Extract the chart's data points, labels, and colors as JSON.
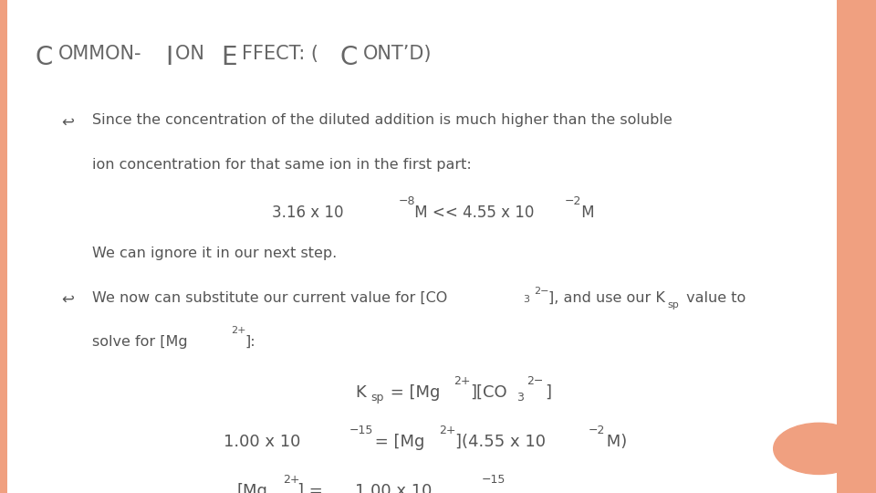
{
  "background_color": "#FFFFFF",
  "border_color": "#F0A080",
  "text_color": "#555555",
  "title_color": "#666666",
  "orange_circle_color": "#F0A080",
  "figsize": [
    9.6,
    5.4
  ],
  "dpi": 100,
  "title_segments": [
    [
      "C",
      20
    ],
    [
      "OMMON-",
      15
    ],
    [
      "I",
      20
    ],
    [
      "ON ",
      15
    ],
    [
      "E",
      20
    ],
    [
      "FFECT: (",
      15
    ],
    [
      "C",
      20
    ],
    [
      "ONT’D)",
      15
    ]
  ]
}
